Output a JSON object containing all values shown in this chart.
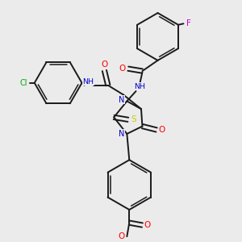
{
  "bg_color": "#ebebeb",
  "bond_color": "#1a1a1a",
  "atom_colors": {
    "O": "#ff0000",
    "N": "#0000cd",
    "S": "#cccc00",
    "F": "#cc00cc",
    "Cl": "#00aa00",
    "H": "#008080",
    "C": "#1a1a1a"
  },
  "figsize": [
    3.0,
    3.0
  ],
  "dpi": 100
}
